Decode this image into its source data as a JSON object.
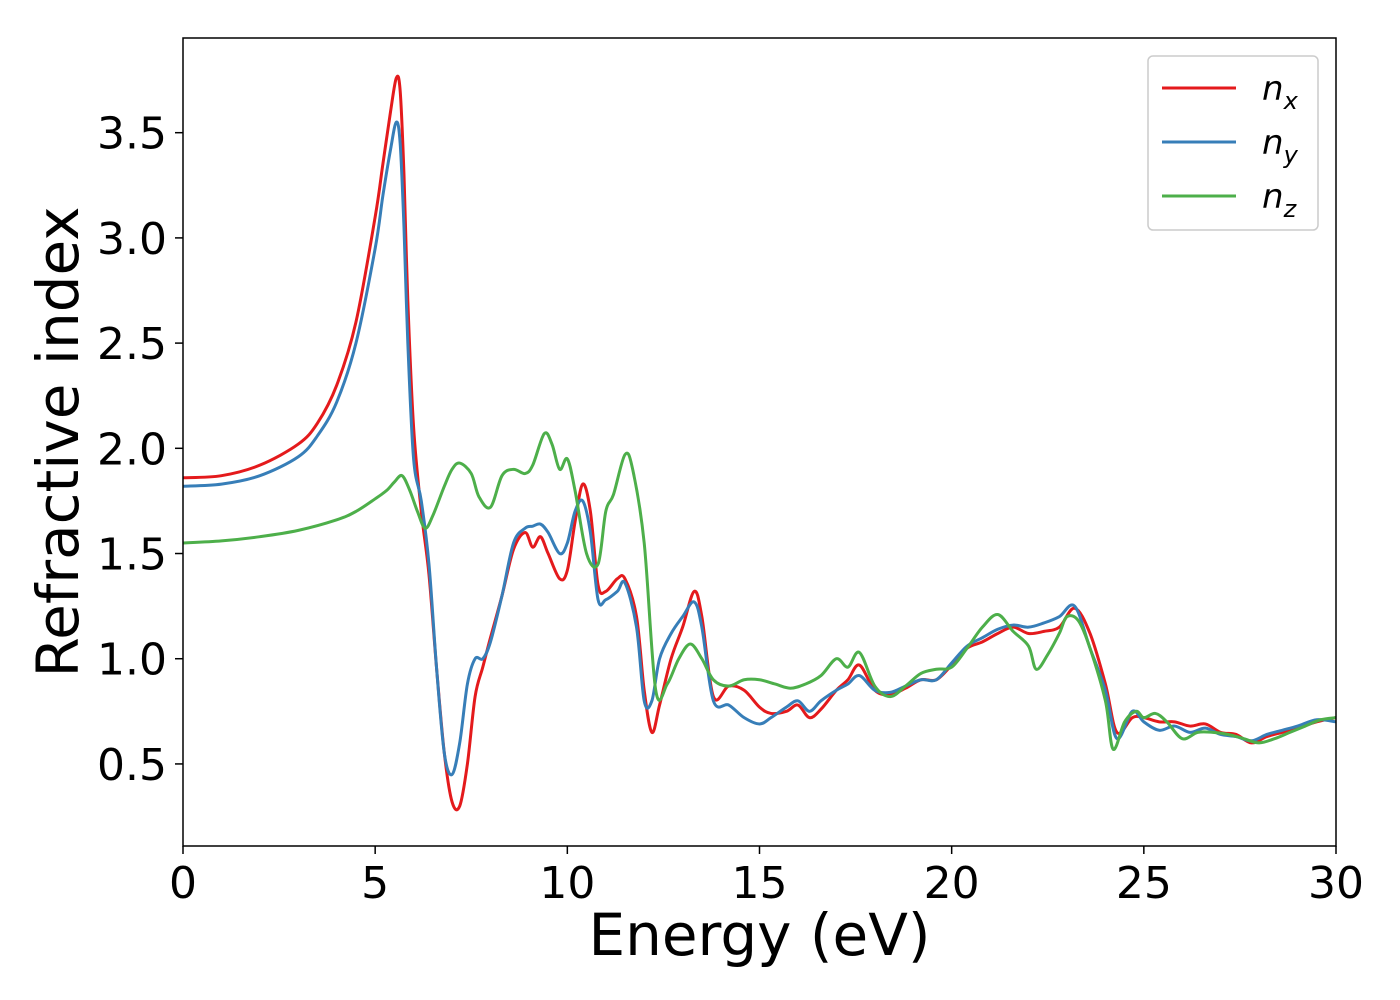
{
  "chart_data": {
    "type": "line",
    "xlabel": "Energy (eV)",
    "ylabel": "Refractive index",
    "xlim": [
      0,
      30
    ],
    "ylim": [
      0.11,
      3.95
    ],
    "xticks": [
      0,
      5,
      10,
      15,
      20,
      25,
      30
    ],
    "yticks": [
      0.5,
      1.0,
      1.5,
      2.0,
      2.5,
      3.0,
      3.5
    ],
    "xtick_labels": [
      "0",
      "5",
      "10",
      "15",
      "20",
      "25",
      "30"
    ],
    "ytick_labels": [
      "0.5",
      "1.0",
      "1.5",
      "2.0",
      "2.5",
      "3.0",
      "3.5"
    ],
    "grid": false,
    "legend_position": "top-right",
    "series": [
      {
        "name": "n_x",
        "label_base": "n",
        "label_sub": "x",
        "color": "#e41a1c",
        "x": [
          0,
          1,
          2,
          3,
          3.5,
          4,
          4.5,
          5,
          5.2,
          5.4,
          5.55,
          5.65,
          5.75,
          5.85,
          6.0,
          6.2,
          6.4,
          6.6,
          6.8,
          7.0,
          7.2,
          7.4,
          7.6,
          7.8,
          8.0,
          8.3,
          8.6,
          8.9,
          9.1,
          9.3,
          9.5,
          9.8,
          10.0,
          10.2,
          10.4,
          10.6,
          10.8,
          11.0,
          11.3,
          11.5,
          11.8,
          12.0,
          12.2,
          12.4,
          12.7,
          13.0,
          13.3,
          13.5,
          13.8,
          14.2,
          14.6,
          15.0,
          15.3,
          15.7,
          16.0,
          16.3,
          16.6,
          17.0,
          17.3,
          17.6,
          18.0,
          18.4,
          18.8,
          19.2,
          19.6,
          20.0,
          20.4,
          20.8,
          21.2,
          21.6,
          22.0,
          22.4,
          22.8,
          23.2,
          23.6,
          24.0,
          24.3,
          24.7,
          25.0,
          25.4,
          25.8,
          26.2,
          26.6,
          27.0,
          27.4,
          27.8,
          28.2,
          28.6,
          29.0,
          29.5,
          30
        ],
        "y": [
          1.86,
          1.87,
          1.92,
          2.02,
          2.12,
          2.3,
          2.6,
          3.1,
          3.35,
          3.6,
          3.76,
          3.7,
          3.3,
          2.7,
          2.1,
          1.7,
          1.4,
          0.95,
          0.55,
          0.32,
          0.3,
          0.5,
          0.82,
          0.96,
          1.1,
          1.3,
          1.52,
          1.6,
          1.53,
          1.58,
          1.5,
          1.38,
          1.42,
          1.65,
          1.83,
          1.7,
          1.35,
          1.32,
          1.38,
          1.38,
          1.2,
          0.85,
          0.65,
          0.78,
          1.0,
          1.15,
          1.32,
          1.2,
          0.82,
          0.87,
          0.85,
          0.77,
          0.74,
          0.75,
          0.78,
          0.72,
          0.76,
          0.85,
          0.9,
          0.97,
          0.85,
          0.83,
          0.86,
          0.9,
          0.9,
          0.97,
          1.05,
          1.08,
          1.12,
          1.15,
          1.12,
          1.13,
          1.15,
          1.24,
          1.12,
          0.88,
          0.65,
          0.72,
          0.72,
          0.7,
          0.7,
          0.68,
          0.69,
          0.65,
          0.64,
          0.6,
          0.63,
          0.65,
          0.67,
          0.7,
          0.72
        ]
      },
      {
        "name": "n_y",
        "label_base": "n",
        "label_sub": "y",
        "color": "#377eb8",
        "x": [
          0,
          1,
          2,
          3,
          3.5,
          4,
          4.5,
          5,
          5.2,
          5.4,
          5.55,
          5.65,
          5.75,
          5.85,
          6.0,
          6.2,
          6.4,
          6.6,
          6.8,
          7.0,
          7.2,
          7.4,
          7.6,
          7.8,
          8.0,
          8.3,
          8.6,
          8.9,
          9.1,
          9.3,
          9.5,
          9.8,
          10.0,
          10.2,
          10.4,
          10.6,
          10.8,
          11.0,
          11.3,
          11.5,
          11.8,
          12.0,
          12.2,
          12.4,
          12.7,
          13.0,
          13.3,
          13.5,
          13.8,
          14.2,
          14.6,
          15.0,
          15.3,
          15.7,
          16.0,
          16.3,
          16.6,
          17.0,
          17.3,
          17.6,
          18.0,
          18.4,
          18.8,
          19.2,
          19.6,
          20.0,
          20.4,
          20.8,
          21.2,
          21.6,
          22.0,
          22.4,
          22.8,
          23.2,
          23.6,
          24.0,
          24.3,
          24.7,
          25.0,
          25.4,
          25.8,
          26.2,
          26.6,
          27.0,
          27.4,
          27.8,
          28.2,
          28.6,
          29.0,
          29.5,
          30
        ],
        "y": [
          1.82,
          1.83,
          1.87,
          1.96,
          2.06,
          2.22,
          2.5,
          2.95,
          3.2,
          3.42,
          3.55,
          3.45,
          3.05,
          2.5,
          1.95,
          1.75,
          1.45,
          0.95,
          0.55,
          0.45,
          0.6,
          0.88,
          1.0,
          1.0,
          1.08,
          1.3,
          1.55,
          1.62,
          1.63,
          1.64,
          1.6,
          1.5,
          1.55,
          1.7,
          1.75,
          1.6,
          1.28,
          1.28,
          1.32,
          1.36,
          1.15,
          0.8,
          0.8,
          1.0,
          1.12,
          1.2,
          1.27,
          1.15,
          0.8,
          0.78,
          0.72,
          0.69,
          0.72,
          0.77,
          0.8,
          0.75,
          0.8,
          0.85,
          0.88,
          0.92,
          0.85,
          0.84,
          0.87,
          0.9,
          0.9,
          0.98,
          1.06,
          1.1,
          1.14,
          1.16,
          1.15,
          1.17,
          1.2,
          1.25,
          1.05,
          0.85,
          0.62,
          0.75,
          0.7,
          0.66,
          0.68,
          0.65,
          0.67,
          0.64,
          0.63,
          0.61,
          0.64,
          0.66,
          0.68,
          0.71,
          0.7
        ]
      },
      {
        "name": "n_z",
        "label_base": "n",
        "label_sub": "z",
        "color": "#4daf4a",
        "x": [
          0,
          1,
          2,
          3,
          4,
          4.5,
          5,
          5.3,
          5.5,
          5.7,
          5.9,
          6.1,
          6.3,
          6.5,
          6.8,
          7.0,
          7.2,
          7.5,
          7.7,
          8.0,
          8.3,
          8.6,
          8.9,
          9.1,
          9.4,
          9.6,
          9.8,
          10.0,
          10.2,
          10.5,
          10.8,
          11.0,
          11.2,
          11.5,
          11.7,
          12.0,
          12.3,
          12.6,
          12.9,
          13.2,
          13.5,
          13.8,
          14.2,
          14.6,
          15.0,
          15.4,
          15.8,
          16.2,
          16.6,
          17.0,
          17.3,
          17.6,
          18.0,
          18.4,
          18.8,
          19.2,
          19.6,
          20.0,
          20.4,
          20.8,
          21.2,
          21.6,
          22.0,
          22.2,
          22.5,
          22.8,
          23.0,
          23.3,
          23.6,
          24.0,
          24.2,
          24.5,
          24.8,
          25.0,
          25.3,
          25.6,
          26.0,
          26.4,
          26.8,
          27.2,
          27.6,
          28.0,
          28.4,
          28.8,
          29.2,
          29.6,
          30
        ],
        "y": [
          1.55,
          1.56,
          1.58,
          1.61,
          1.66,
          1.7,
          1.76,
          1.8,
          1.84,
          1.87,
          1.8,
          1.7,
          1.62,
          1.68,
          1.82,
          1.9,
          1.93,
          1.88,
          1.77,
          1.72,
          1.87,
          1.9,
          1.88,
          1.92,
          2.07,
          2.02,
          1.9,
          1.95,
          1.8,
          1.5,
          1.45,
          1.7,
          1.78,
          1.97,
          1.9,
          1.55,
          0.85,
          0.88,
          1.0,
          1.07,
          1.0,
          0.9,
          0.87,
          0.9,
          0.9,
          0.88,
          0.86,
          0.88,
          0.92,
          1.0,
          0.96,
          1.03,
          0.87,
          0.82,
          0.87,
          0.93,
          0.95,
          0.96,
          1.05,
          1.15,
          1.21,
          1.13,
          1.06,
          0.95,
          1.02,
          1.12,
          1.2,
          1.18,
          1.05,
          0.8,
          0.57,
          0.7,
          0.75,
          0.72,
          0.74,
          0.7,
          0.62,
          0.65,
          0.65,
          0.64,
          0.62,
          0.6,
          0.62,
          0.65,
          0.68,
          0.71,
          0.72
        ]
      }
    ]
  }
}
